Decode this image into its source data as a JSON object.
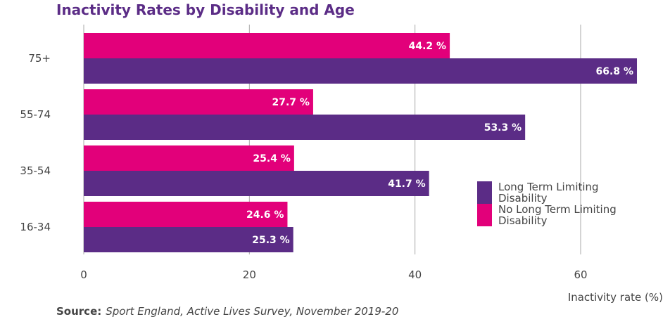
{
  "chart_data": {
    "type": "bar",
    "orientation": "horizontal",
    "title": "Inactivity Rates by Disability and Age",
    "xlabel": "Inactivity rate (%)",
    "ylabel": "",
    "categories": [
      "75+",
      "55-74",
      "35-54",
      "16-34"
    ],
    "series": [
      {
        "name": "No Long Term Limiting Disability",
        "color": "#e2007a",
        "values": [
          44.2,
          27.7,
          25.4,
          24.6
        ],
        "labels": [
          "44.2 %",
          "27.7 %",
          "25.4 %",
          "24.6 %"
        ]
      },
      {
        "name": "Long Term Limiting Disability",
        "color": "#5b2c86",
        "values": [
          66.8,
          53.3,
          41.7,
          25.3
        ],
        "labels": [
          "66.8 %",
          "53.3 %",
          "41.7 %",
          "25.3 %"
        ]
      }
    ],
    "xlim": [
      0,
      70
    ],
    "xticks": [
      "0",
      "20",
      "40",
      "60"
    ],
    "grid": true,
    "legend": "right"
  },
  "legend": [
    {
      "label": "Long Term Limiting Disability",
      "color": "#5b2c86"
    },
    {
      "label": "No Long Term Limiting Disability",
      "color": "#e2007a"
    }
  ],
  "source": {
    "label": "Source:",
    "text": "Sport England, Active Lives Survey, November 2019-20"
  }
}
